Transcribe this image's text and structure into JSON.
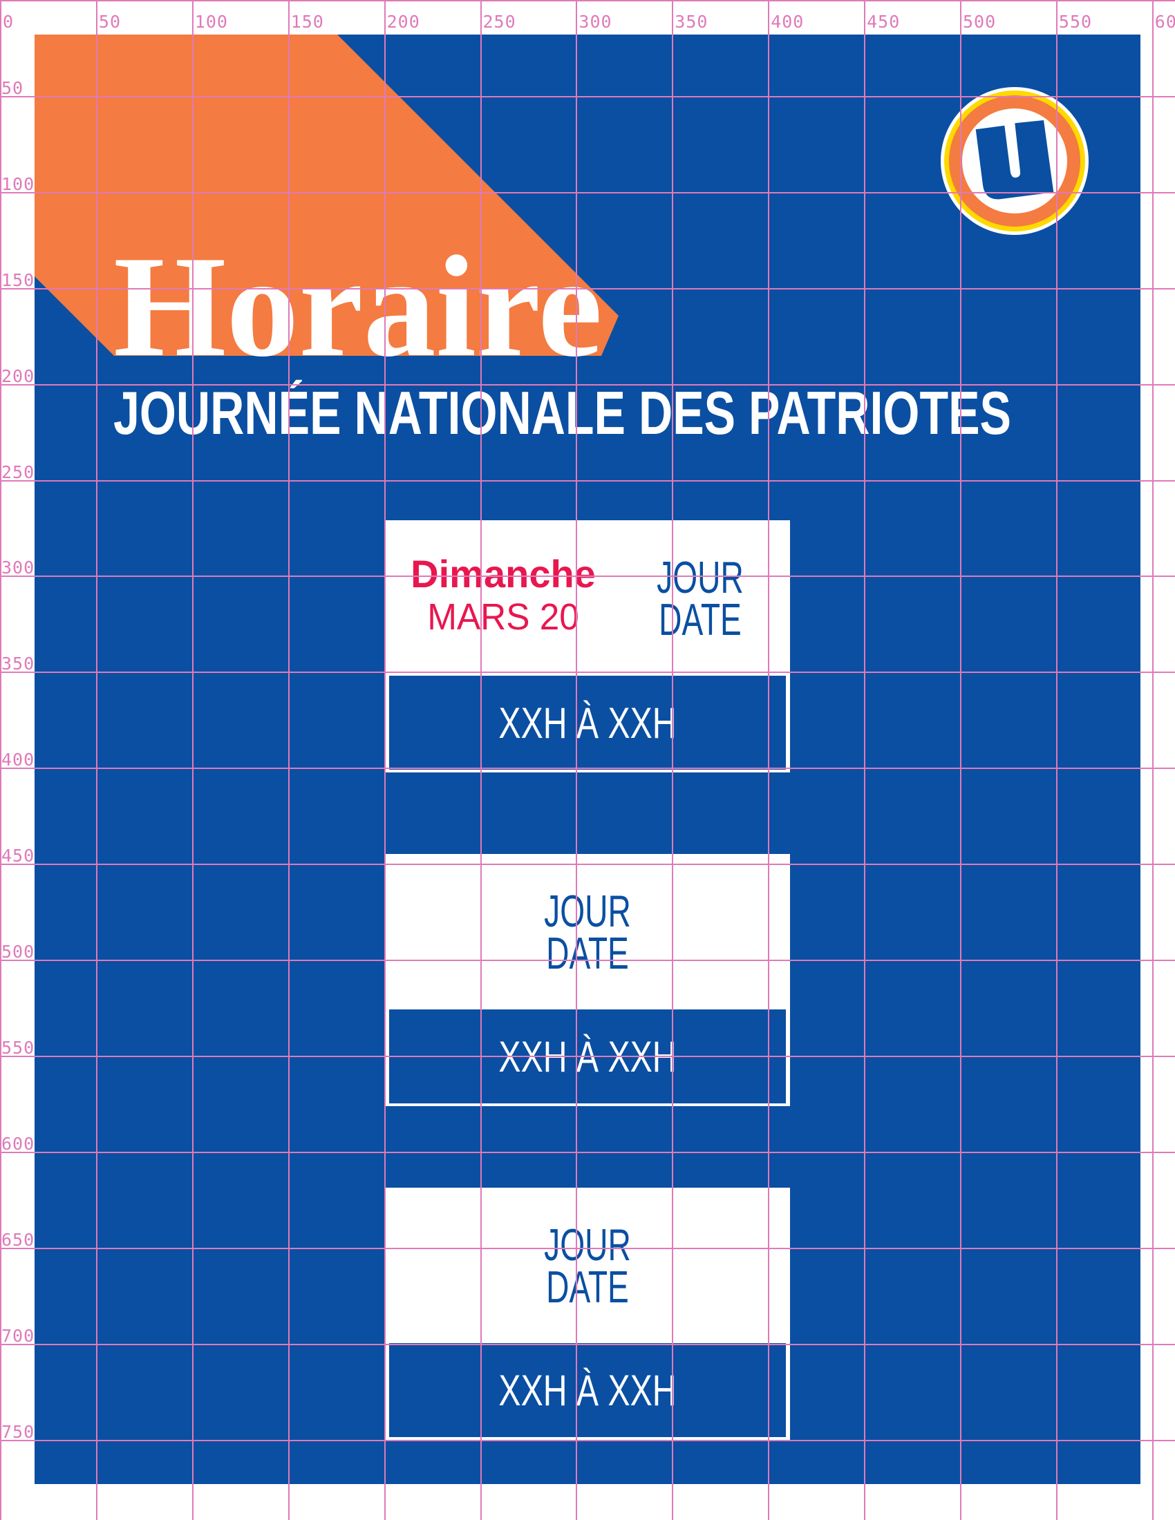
{
  "colors": {
    "blue": "#0a4fa2",
    "orange": "#f47b41",
    "yellow": "#ffd900",
    "red": "#e8174f",
    "grid": "#e07ab8"
  },
  "header": {
    "title": "Horaire",
    "subtitle": "JOURNÉE NATIONALE DES PATRIOTES",
    "logo": "u-logo-icon"
  },
  "schedule": [
    {
      "day": "JOUR",
      "date": "DATE",
      "hours": "XXH À XXH",
      "overlay_day": "Dimanche",
      "overlay_date": "MARS 20"
    },
    {
      "day": "JOUR",
      "date": "DATE",
      "hours": "XXH À XXH"
    },
    {
      "day": "JOUR",
      "date": "DATE",
      "hours": "XXH À XXH"
    }
  ],
  "ruler": {
    "x_labels": [
      "0",
      "50",
      "100",
      "150",
      "200",
      "250",
      "300",
      "350",
      "400",
      "450",
      "500",
      "550",
      "600"
    ],
    "y_labels": [
      "50",
      "100",
      "150",
      "200",
      "250",
      "300",
      "350",
      "400",
      "450",
      "500",
      "550",
      "600",
      "650",
      "700",
      "750"
    ]
  }
}
